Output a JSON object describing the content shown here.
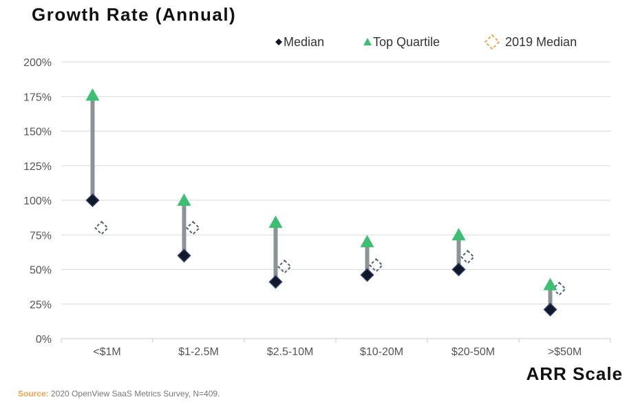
{
  "chart_data": {
    "type": "scatter",
    "title": "Growth Rate (Annual)",
    "xlabel": "ARR Scale",
    "ylabel": "",
    "categories": [
      "<$1M",
      "$1-2.5M",
      "$2.5-10M",
      "$10-20M",
      "$20-50M",
      ">$50M"
    ],
    "ylim": [
      0,
      200
    ],
    "yticks": [
      0,
      25,
      50,
      75,
      100,
      125,
      150,
      175,
      200
    ],
    "ytick_labels": [
      "0%",
      "25%",
      "50%",
      "75%",
      "100%",
      "125%",
      "150%",
      "175%",
      "200%"
    ],
    "y_unit": "%",
    "grid": true,
    "legend_position": "top-right",
    "series": [
      {
        "name": "Median",
        "marker": "diamond",
        "color": "#111827",
        "values": [
          100,
          60,
          41,
          46,
          50,
          21
        ]
      },
      {
        "name": "Top Quartile",
        "marker": "triangle",
        "color": "#3dbf73",
        "values": [
          176,
          100,
          84,
          70,
          75,
          39
        ]
      },
      {
        "name": "2019 Median",
        "marker": "dashed-diamond",
        "color": "#56606b",
        "legend_color": "#f0a44a",
        "values": [
          80,
          80,
          52,
          53,
          59,
          36
        ]
      }
    ],
    "connector_color": "#8c9396"
  },
  "source": {
    "label": "Source:",
    "text": "2020 OpenView SaaS Metrics Survey, N=409."
  }
}
